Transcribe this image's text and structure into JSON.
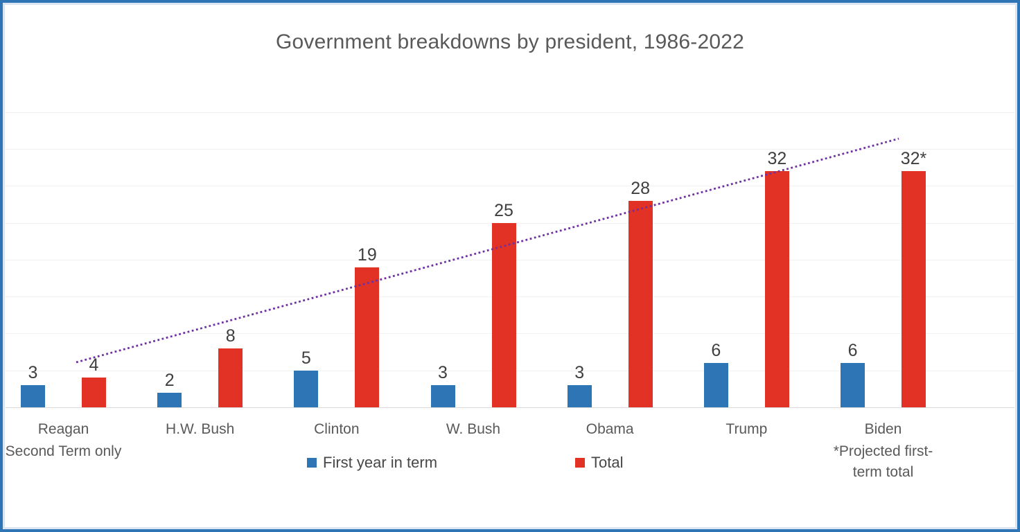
{
  "chart_data": {
    "type": "bar",
    "title": "Government breakdowns by president, 1986-2022",
    "categories": [
      {
        "label": "Reagan",
        "sublabel": "Second Term only"
      },
      {
        "label": "H.W. Bush",
        "sublabel": ""
      },
      {
        "label": "Clinton",
        "sublabel": ""
      },
      {
        "label": "W. Bush",
        "sublabel": ""
      },
      {
        "label": "Obama",
        "sublabel": ""
      },
      {
        "label": "Trump",
        "sublabel": ""
      },
      {
        "label": "Biden",
        "sublabel": "*Projected first-\nterm total"
      }
    ],
    "series": [
      {
        "name": "First year in term",
        "color": "#2e75b6",
        "values": [
          3,
          2,
          5,
          3,
          3,
          6,
          6
        ],
        "data_labels": [
          "3",
          "2",
          "5",
          "3",
          "3",
          "6",
          "6"
        ]
      },
      {
        "name": "Total",
        "color": "#e23125",
        "values": [
          4,
          8,
          19,
          25,
          28,
          32,
          32
        ],
        "data_labels": [
          "4",
          "8",
          "19",
          "25",
          "28",
          "32",
          "32*"
        ]
      }
    ],
    "ylim": [
      0,
      40
    ],
    "gridline_step": 5,
    "grid": true,
    "y_axis_labels_visible": false,
    "legend_position": "bottom",
    "trendline": {
      "applies_to": "Total",
      "style": "dotted",
      "color": "#7030a0",
      "start": {
        "x_frac": 0.0604,
        "value": 6.1
      },
      "end": {
        "x_frac": 0.894,
        "value": 36.4
      }
    }
  },
  "style_colors": {
    "frame_border": "#2e75b6",
    "frame_inner_border": "#dbe5f1",
    "title_text": "#595959",
    "data_label_text": "#3f3f3f",
    "category_text": "#595959",
    "legend_text": "#474747",
    "gridline": "#f2f2f2",
    "baseline": "#d9d9d9",
    "background": "#ffffff"
  }
}
